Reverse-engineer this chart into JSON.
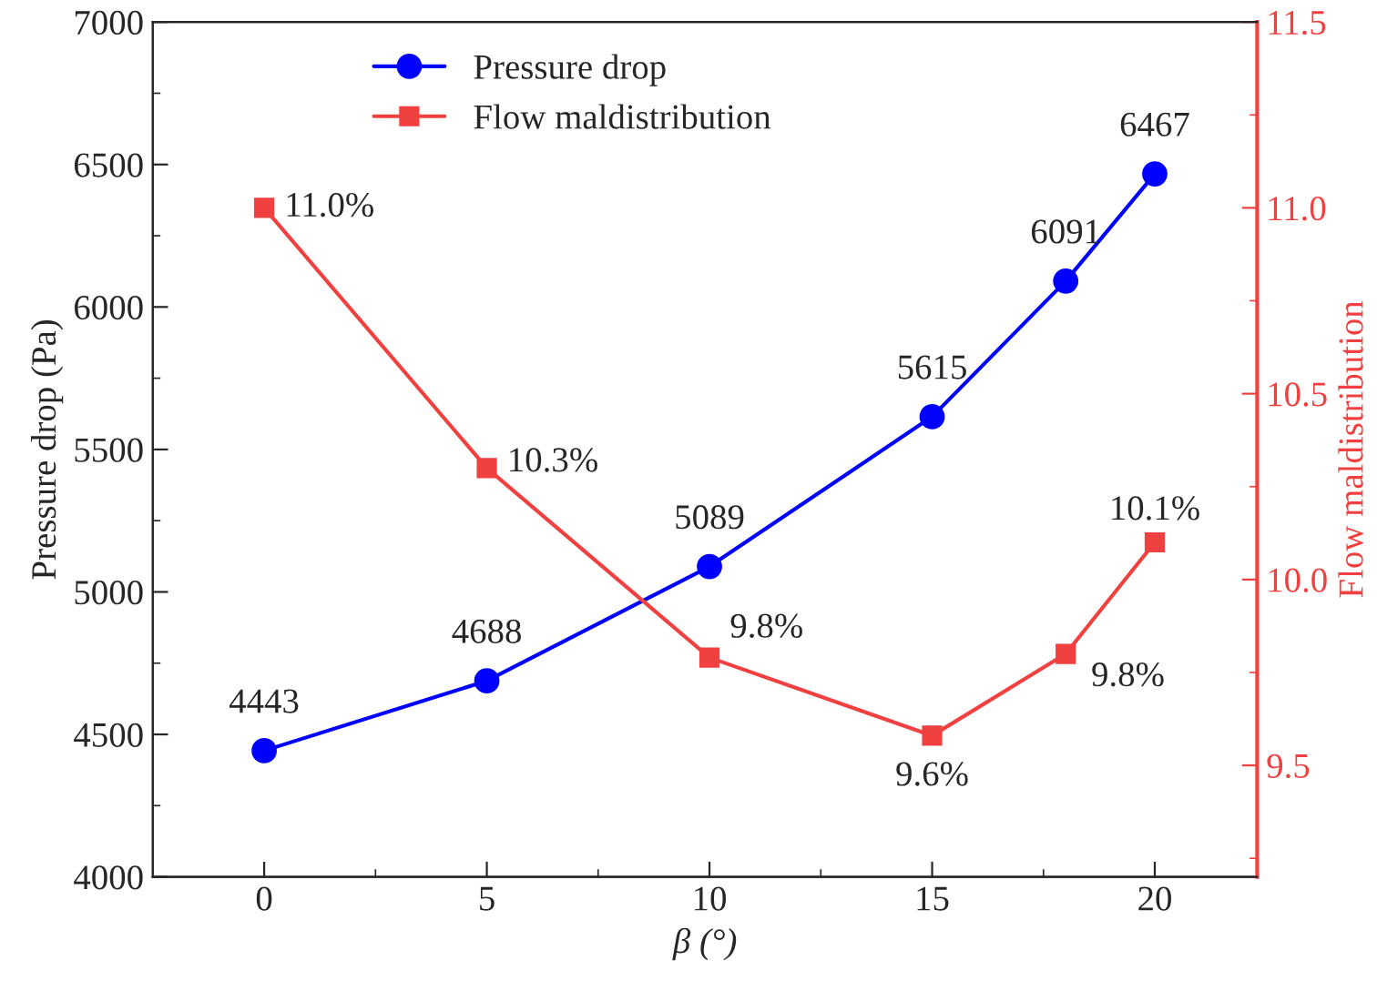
{
  "chart_data": {
    "type": "line",
    "xlabel": "β (°)",
    "ylabel": "Pressure drop (Pa)",
    "y2label": "Flow maldistribution",
    "x": [
      0,
      5,
      10,
      15,
      18,
      20
    ],
    "xlim": [
      -2.5,
      22.3
    ],
    "xticks": [
      0,
      5,
      10,
      15,
      20
    ],
    "ylim": [
      4000,
      7000
    ],
    "yticks": [
      4000,
      4500,
      5000,
      5500,
      6000,
      6500,
      7000
    ],
    "y2lim": [
      9.2,
      11.5
    ],
    "y2ticks": [
      9.5,
      {
        "value": 10,
        "label": "10.0"
      },
      10.5,
      {
        "value": 11,
        "label": "11.0"
      },
      11.5
    ],
    "series": [
      {
        "name": "Pressure drop",
        "color": "#0000ff",
        "marker": "circle",
        "values": [
          4443,
          4688,
          5089,
          5615,
          6091,
          6467
        ],
        "value_labels": [
          "4443",
          "4688",
          "5089",
          "5615",
          "6091",
          "6467"
        ]
      },
      {
        "name": "Flow maldistribution",
        "color": "#f04040",
        "marker": "square",
        "axis": "y2",
        "values": [
          11.0,
          10.3,
          9.79,
          9.58,
          9.8,
          10.1
        ],
        "value_labels": [
          "11.0%",
          "10.3%",
          "9.8%",
          "9.6%",
          "9.8%",
          "10.1%"
        ]
      }
    ],
    "legend": "top",
    "grid": false
  }
}
